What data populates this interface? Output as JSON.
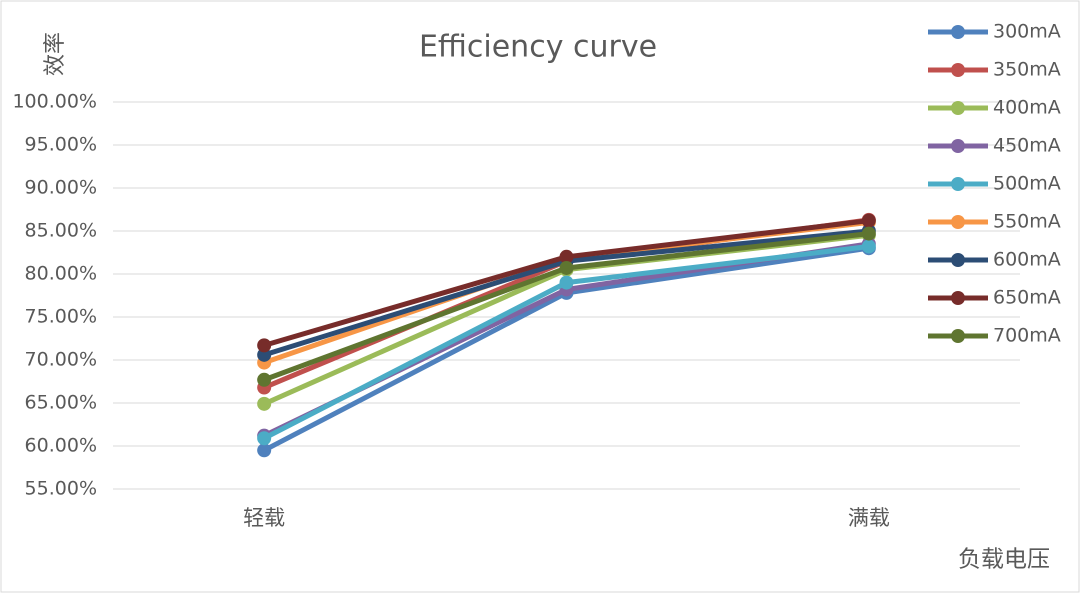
{
  "chart_data": {
    "type": "line",
    "title": "Efficiency curve",
    "y_label": "效率",
    "x_label": "负载电压",
    "categories": [
      "轻载",
      null,
      "满载"
    ],
    "series": [
      {
        "name": "300mA",
        "color": "#4f81bd",
        "values": [
          59.5,
          77.8,
          83.0
        ]
      },
      {
        "name": "350mA",
        "color": "#c0504d",
        "values": [
          66.8,
          81.5,
          86.3
        ]
      },
      {
        "name": "400mA",
        "color": "#9bbb59",
        "values": [
          64.9,
          80.5,
          84.5
        ]
      },
      {
        "name": "450mA",
        "color": "#8064a2",
        "values": [
          61.2,
          78.2,
          83.5
        ]
      },
      {
        "name": "500mA",
        "color": "#4bacc6",
        "values": [
          60.9,
          79.0,
          83.2
        ]
      },
      {
        "name": "550mA",
        "color": "#f79646",
        "values": [
          69.7,
          81.8,
          86.0
        ]
      },
      {
        "name": "600mA",
        "color": "#2c4d75",
        "values": [
          70.6,
          81.5,
          85.0
        ]
      },
      {
        "name": "650mA",
        "color": "#772c2a",
        "values": [
          71.7,
          82.0,
          86.2
        ]
      },
      {
        "name": "700mA",
        "color": "#5f7530",
        "values": [
          67.7,
          80.7,
          84.7
        ]
      }
    ],
    "ylim": [
      55,
      100
    ],
    "yticks": [
      {
        "value": 55,
        "label": "55.00%"
      },
      {
        "value": 60,
        "label": "60.00%"
      },
      {
        "value": 65,
        "label": "65.00%"
      },
      {
        "value": 70,
        "label": "70.00%"
      },
      {
        "value": 75,
        "label": "75.00%"
      },
      {
        "value": 80,
        "label": "80.00%"
      },
      {
        "value": 85,
        "label": "85.00%"
      },
      {
        "value": 90,
        "label": "90.00%"
      },
      {
        "value": 95,
        "label": "95.00%"
      },
      {
        "value": 100,
        "label": "100.00%"
      }
    ],
    "grid": true,
    "legend": "top-right"
  }
}
